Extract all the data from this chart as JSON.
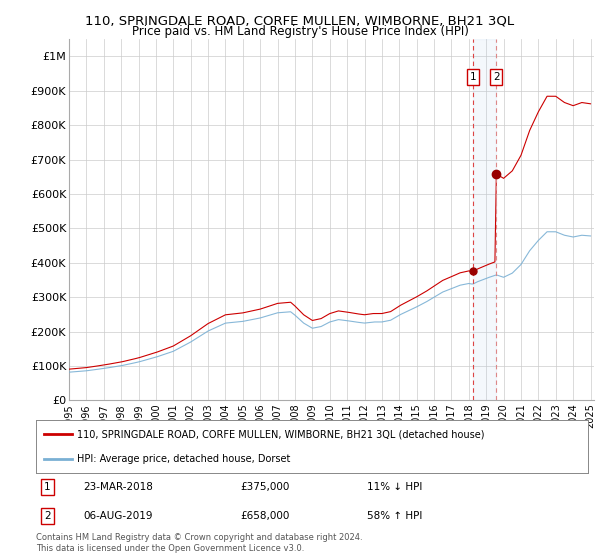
{
  "title": "110, SPRINGDALE ROAD, CORFE MULLEN, WIMBORNE, BH21 3QL",
  "subtitle": "Price paid vs. HM Land Registry's House Price Index (HPI)",
  "legend_line1": "110, SPRINGDALE ROAD, CORFE MULLEN, WIMBORNE, BH21 3QL (detached house)",
  "legend_line2": "HPI: Average price, detached house, Dorset",
  "annotation1_label": "1",
  "annotation1_date": "23-MAR-2018",
  "annotation1_price": "£375,000",
  "annotation1_pct": "11% ↓ HPI",
  "annotation2_label": "2",
  "annotation2_date": "06-AUG-2019",
  "annotation2_price": "£658,000",
  "annotation2_pct": "58% ↑ HPI",
  "footer": "Contains HM Land Registry data © Crown copyright and database right 2024.\nThis data is licensed under the Open Government Licence v3.0.",
  "sale1_year": 2018.22,
  "sale1_price": 375000,
  "sale2_year": 2019.58,
  "sale2_price": 658000,
  "line_color_red": "#cc0000",
  "line_color_blue": "#7ab0d4",
  "background_color": "#ffffff",
  "grid_color": "#cccccc",
  "ylim": [
    0,
    1050000
  ],
  "xlim": [
    1995.0,
    2025.2
  ],
  "yticks": [
    0,
    100000,
    200000,
    300000,
    400000,
    500000,
    600000,
    700000,
    800000,
    900000,
    1000000
  ],
  "ytick_labels": [
    "£0",
    "£100K",
    "£200K",
    "£300K",
    "£400K",
    "£500K",
    "£600K",
    "£700K",
    "£800K",
    "£900K",
    "£1M"
  ],
  "xticks": [
    1995,
    1996,
    1997,
    1998,
    1999,
    2000,
    2001,
    2002,
    2003,
    2004,
    2005,
    2006,
    2007,
    2008,
    2009,
    2010,
    2011,
    2012,
    2013,
    2014,
    2015,
    2016,
    2017,
    2018,
    2019,
    2020,
    2021,
    2022,
    2023,
    2024,
    2025
  ]
}
